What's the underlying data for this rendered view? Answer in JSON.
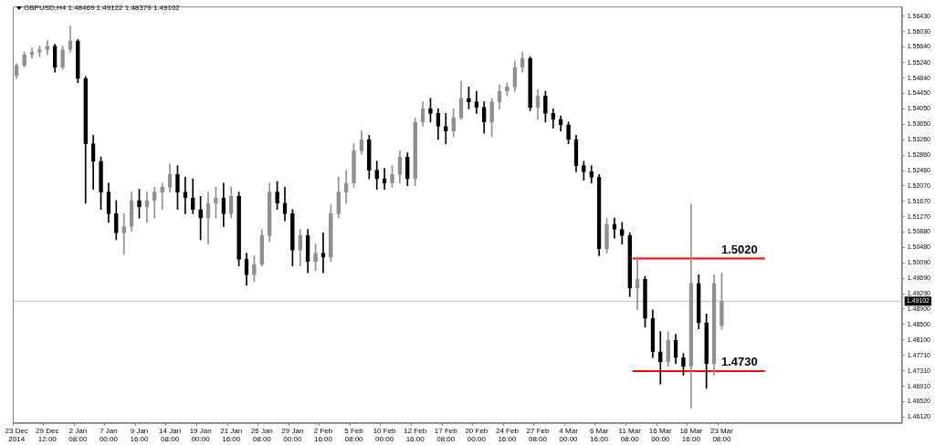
{
  "chart_data": {
    "type": "candlestick",
    "title": "GBPUSD,H4 1.48469 1.49122 1.48379 1.49102",
    "categories": [
      "23 Dec 2014",
      null,
      null,
      null,
      "29 Dec 12:00",
      null,
      null,
      null,
      "2 Jan 08:00",
      null,
      null,
      null,
      "7 Jan 00:00",
      null,
      null,
      null,
      "9 Jan 16:00",
      null,
      null,
      null,
      "14 Jan 08:00",
      null,
      null,
      null,
      "19 Jan 00:00",
      null,
      null,
      null,
      "21 Jan 16:00",
      null,
      null,
      null,
      "26 Jan 08:00",
      null,
      null,
      null,
      "29 Jan 00:00",
      null,
      null,
      null,
      "2 Feb 16:00",
      null,
      null,
      null,
      "5 Feb 08:00",
      null,
      null,
      null,
      "10 Feb 00:00",
      null,
      null,
      null,
      "12 Feb 16:00",
      null,
      null,
      null,
      "17 Feb 08:00",
      null,
      null,
      null,
      "20 Feb 00:00",
      null,
      null,
      null,
      "24 Feb 16:00",
      null,
      null,
      null,
      "27 Feb 08:00",
      null,
      null,
      null,
      "4 Mar 00:00",
      null,
      null,
      null,
      "6 Mar 16:00",
      null,
      null,
      null,
      "11 Mar 08:00",
      null,
      null,
      null,
      "16 Mar 00:00",
      null,
      null,
      null,
      "18 Mar 16:00",
      null,
      null,
      null,
      "23 Mar 08:00",
      null,
      null,
      null,
      null,
      null,
      null,
      null,
      null,
      null,
      null,
      null,
      null,
      null,
      null,
      null,
      null,
      null,
      null,
      null,
      null,
      null,
      null,
      null
    ],
    "colors": [
      "#909090",
      "#909090",
      "#909090",
      "#909090",
      "#909090",
      "#000000",
      "#909090",
      "#909090",
      "#000000",
      "#000000",
      "#000000",
      "#000000",
      "#000000",
      "#000000",
      "#909090",
      "#909090",
      "#000000",
      "#909090",
      "#909090",
      "#909090",
      "#909090",
      "#000000",
      "#000000",
      "#000000",
      "#000000",
      "#909090",
      "#909090",
      "#000000",
      "#909090",
      "#000000",
      "#000000",
      "#909090",
      "#909090",
      "#909090",
      "#000000",
      "#000000",
      "#000000",
      "#909090",
      "#000000",
      "#909090",
      "#000000",
      "#909090",
      "#909090",
      "#909090",
      "#909090",
      "#909090",
      "#000000",
      "#000000",
      "#000000",
      "#909090",
      "#909090",
      "#000000",
      "#909090",
      "#909090",
      "#000000",
      "#000000",
      "#000000",
      "#909090",
      "#909090",
      "#000000",
      "#000000",
      "#000000",
      "#909090",
      "#909090",
      "#909090",
      "#909090",
      "#909090",
      "#000000",
      "#909090",
      "#000000",
      "#000000",
      "#000000",
      "#000000",
      "#000000",
      "#000000",
      "#000000",
      "#000000",
      "#909090",
      "#000000",
      "#000000",
      "#000000",
      "#909090",
      "#000000",
      "#000000",
      "#000000",
      "#909090",
      "#000000",
      "#000000",
      "#909090",
      "#000000",
      "#000000",
      "#909090",
      "#909090",
      null,
      null,
      null,
      null,
      null,
      null,
      null,
      null,
      null,
      null,
      null,
      null,
      null,
      null,
      null,
      null,
      null,
      null,
      null,
      null,
      null,
      null,
      null
    ],
    "ohlc": [
      [
        1.549,
        1.5521,
        1.5483,
        1.5517
      ],
      [
        1.5517,
        1.5551,
        1.5512,
        1.5544
      ],
      [
        1.5544,
        1.5562,
        1.5535,
        1.5551
      ],
      [
        1.5551,
        1.5566,
        1.5539,
        1.5557
      ],
      [
        1.5557,
        1.558,
        1.5544,
        1.5566
      ],
      [
        1.5566,
        1.5571,
        1.5499,
        1.5512
      ],
      [
        1.5512,
        1.5566,
        1.5506,
        1.5557
      ],
      [
        1.5557,
        1.5618,
        1.5551,
        1.558
      ],
      [
        1.558,
        1.5584,
        1.5472,
        1.5483
      ],
      [
        1.5483,
        1.5488,
        1.5162,
        1.5315
      ],
      [
        1.5315,
        1.5337,
        1.5198,
        1.527
      ],
      [
        1.527,
        1.5281,
        1.5146,
        1.5191
      ],
      [
        1.5191,
        1.5214,
        1.5113,
        1.5135
      ],
      [
        1.5135,
        1.5169,
        1.5068,
        1.5086
      ],
      [
        1.5086,
        1.5135,
        1.503,
        1.5102
      ],
      [
        1.5102,
        1.5191,
        1.509,
        1.5169
      ],
      [
        1.5169,
        1.5198,
        1.5124,
        1.5153
      ],
      [
        1.5153,
        1.5191,
        1.5113,
        1.5169
      ],
      [
        1.5169,
        1.5203,
        1.5124,
        1.5191
      ],
      [
        1.5191,
        1.5214,
        1.5146,
        1.5203
      ],
      [
        1.5203,
        1.5263,
        1.5191,
        1.5236
      ],
      [
        1.5236,
        1.5259,
        1.5146,
        1.5191
      ],
      [
        1.5191,
        1.5229,
        1.5135,
        1.5176
      ],
      [
        1.5176,
        1.5225,
        1.5135,
        1.5146
      ],
      [
        1.5146,
        1.518,
        1.5068,
        1.5124
      ],
      [
        1.5124,
        1.5191,
        1.5057,
        1.5162
      ],
      [
        1.5162,
        1.5203,
        1.5124,
        1.5176
      ],
      [
        1.5176,
        1.5214,
        1.5102,
        1.5135
      ],
      [
        1.5135,
        1.5203,
        1.5124,
        1.518
      ],
      [
        1.518,
        1.5191,
        1.5001,
        1.5018
      ],
      [
        1.5018,
        1.5034,
        1.4951,
        1.4978
      ],
      [
        1.4978,
        1.5027,
        1.496,
        1.5005
      ],
      [
        1.5005,
        1.5095,
        1.5001,
        1.5079
      ],
      [
        1.5079,
        1.5214,
        1.5063,
        1.5191
      ],
      [
        1.5191,
        1.5218,
        1.5146,
        1.5162
      ],
      [
        1.5162,
        1.5203,
        1.5117,
        1.5135
      ],
      [
        1.5135,
        1.5146,
        1.5001,
        1.5041
      ],
      [
        1.5041,
        1.5095,
        1.5001,
        1.5079
      ],
      [
        1.5079,
        1.5095,
        1.4983,
        1.5012
      ],
      [
        1.5012,
        1.5057,
        1.4989,
        1.5034
      ],
      [
        1.5034,
        1.5086,
        1.4983,
        1.5023
      ],
      [
        1.5023,
        1.5158,
        1.5012,
        1.5135
      ],
      [
        1.5135,
        1.5229,
        1.5124,
        1.5191
      ],
      [
        1.5191,
        1.5247,
        1.5162,
        1.5214
      ],
      [
        1.5214,
        1.5315,
        1.5203,
        1.5297
      ],
      [
        1.5297,
        1.5348,
        1.5288,
        1.5326
      ],
      [
        1.5326,
        1.5337,
        1.5225,
        1.5247
      ],
      [
        1.5247,
        1.527,
        1.5198,
        1.5225
      ],
      [
        1.5225,
        1.5252,
        1.5198,
        1.5214
      ],
      [
        1.5214,
        1.5259,
        1.5203,
        1.5236
      ],
      [
        1.5236,
        1.5297,
        1.5214,
        1.5281
      ],
      [
        1.5281,
        1.5292,
        1.5207,
        1.5225
      ],
      [
        1.5225,
        1.5382,
        1.5207,
        1.5371
      ],
      [
        1.5371,
        1.5423,
        1.536,
        1.5405
      ],
      [
        1.5405,
        1.5432,
        1.5371,
        1.5393
      ],
      [
        1.5393,
        1.5405,
        1.5326,
        1.536
      ],
      [
        1.536,
        1.5393,
        1.5315,
        1.5348
      ],
      [
        1.5348,
        1.5405,
        1.5333,
        1.5382
      ],
      [
        1.5382,
        1.5476,
        1.5378,
        1.5432
      ],
      [
        1.5432,
        1.5461,
        1.5405,
        1.5423
      ],
      [
        1.5423,
        1.545,
        1.5393,
        1.5409
      ],
      [
        1.5409,
        1.5423,
        1.5342,
        1.5371
      ],
      [
        1.5371,
        1.5432,
        1.5333,
        1.5423
      ],
      [
        1.5423,
        1.5467,
        1.5405,
        1.545
      ],
      [
        1.545,
        1.5472,
        1.5438,
        1.5461
      ],
      [
        1.5461,
        1.5528,
        1.545,
        1.5512
      ],
      [
        1.5512,
        1.5551,
        1.5499,
        1.5535
      ],
      [
        1.5535,
        1.5539,
        1.54,
        1.5409
      ],
      [
        1.5409,
        1.5454,
        1.5378,
        1.5438
      ],
      [
        1.5438,
        1.545,
        1.5371,
        1.5393
      ],
      [
        1.5393,
        1.5405,
        1.5355,
        1.5378
      ],
      [
        1.5378,
        1.5387,
        1.5348,
        1.5364
      ],
      [
        1.5364,
        1.5371,
        1.5315,
        1.5326
      ],
      [
        1.5326,
        1.5337,
        1.5243,
        1.5259
      ],
      [
        1.5259,
        1.527,
        1.5221,
        1.5243
      ],
      [
        1.5243,
        1.5259,
        1.5214,
        1.5229
      ],
      [
        1.5229,
        1.5236,
        1.5027,
        1.5045
      ],
      [
        1.5045,
        1.5124,
        1.5034,
        1.5108
      ],
      [
        1.5108,
        1.5124,
        1.5072,
        1.5095
      ],
      [
        1.5095,
        1.5113,
        1.5057,
        1.5079
      ],
      [
        1.5079,
        1.5086,
        1.4922,
        1.4944
      ],
      [
        1.4944,
        1.5023,
        1.4888,
        1.4967
      ],
      [
        1.4967,
        1.4974,
        1.4843,
        1.4866
      ],
      [
        1.4866,
        1.4888,
        1.4765,
        1.478
      ],
      [
        1.478,
        1.4832,
        1.4697,
        1.4754
      ],
      [
        1.4754,
        1.4832,
        1.4742,
        1.481
      ],
      [
        1.481,
        1.4825,
        1.4749,
        1.4765
      ],
      [
        1.4765,
        1.4776,
        1.472,
        1.4742
      ],
      [
        1.4742,
        1.516,
        1.4635,
        1.4956
      ],
      [
        1.4956,
        1.4978,
        1.4839,
        1.4855
      ],
      [
        1.4855,
        1.4877,
        1.4686,
        1.4749
      ],
      [
        1.4749,
        1.4978,
        1.472,
        1.4956
      ],
      [
        1.4847,
        1.4983,
        1.4838,
        1.491
      ],
      null,
      null,
      null,
      null,
      null,
      null,
      null,
      null,
      null,
      null,
      null,
      null,
      null,
      null,
      null,
      null,
      null,
      null,
      null,
      null,
      null,
      null,
      null
    ],
    "ylim": [
      1.4597,
      1.5668
    ],
    "yticks": [
      {
        "value": 1.5643,
        "label": "1.56430"
      },
      {
        "value": 1.5603,
        "label": "1.56030"
      },
      {
        "value": 1.5564,
        "label": "1.55640"
      },
      {
        "value": 1.5524,
        "label": "1.55240"
      },
      {
        "value": 1.5484,
        "label": "1.54840"
      },
      {
        "value": 1.5445,
        "label": "1.54450"
      },
      {
        "value": 1.5405,
        "label": "1.54050"
      },
      {
        "value": 1.5365,
        "label": "1.53650"
      },
      {
        "value": 1.5326,
        "label": "1.53260"
      },
      {
        "value": 1.5286,
        "label": "1.52860"
      },
      {
        "value": 1.5246,
        "label": "1.52460"
      },
      {
        "value": 1.5207,
        "label": "1.52070"
      },
      {
        "value": 1.5167,
        "label": "1.51670"
      },
      {
        "value": 1.5127,
        "label": "1.51270"
      },
      {
        "value": 1.5088,
        "label": "1.50880"
      },
      {
        "value": 1.5048,
        "label": "1.50480"
      },
      {
        "value": 1.5009,
        "label": "1.50090"
      },
      {
        "value": 1.4969,
        "label": "1.49690"
      },
      {
        "value": 1.4929,
        "label": "1.49290"
      },
      {
        "value": 1.489,
        "label": "1.48900"
      },
      {
        "value": 1.485,
        "label": "1.48500"
      },
      {
        "value": 1.481,
        "label": "1.48100"
      },
      {
        "value": 1.4771,
        "label": "1.47710"
      },
      {
        "value": 1.4731,
        "label": "1.47310"
      },
      {
        "value": 1.4691,
        "label": "1.46910"
      },
      {
        "value": 1.4652,
        "label": "1.46520"
      },
      {
        "value": 1.4612,
        "label": "1.46120"
      }
    ],
    "ref_lines": [
      {
        "axis": "y",
        "value": 1.502,
        "label": "1.5020",
        "color": "#ff0000"
      },
      {
        "axis": "y",
        "value": 1.473,
        "label": "1.4730",
        "color": "#ff0000"
      },
      {
        "axis": "y",
        "value": 1.49102,
        "label": "1.49102"
      }
    ],
    "grid": false,
    "legend": false
  }
}
